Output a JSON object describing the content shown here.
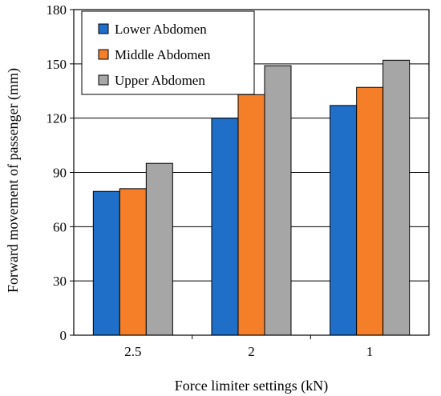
{
  "chart_data": {
    "type": "bar",
    "title": "",
    "xlabel": "Force limiter settings (kN)",
    "ylabel": "Forward movement of passenger  (mm)",
    "categories": [
      "2.5",
      "2",
      "1"
    ],
    "series": [
      {
        "name": "Lower Abdomen",
        "color": "#1f6fc9",
        "values": [
          79.5,
          120,
          127
        ]
      },
      {
        "name": "Middle Abdomen",
        "color": "#f57f29",
        "values": [
          81,
          133,
          137
        ]
      },
      {
        "name": "Upper Abdomen",
        "color": "#a6a6a6",
        "values": [
          95,
          149,
          152
        ]
      }
    ],
    "ylim": [
      0,
      180
    ],
    "yticks": [
      0,
      30,
      60,
      90,
      120,
      150,
      180
    ],
    "ytick_labels": [
      "0",
      "30",
      "60",
      "90",
      "120",
      "150",
      "180"
    ],
    "grid": "horizontal",
    "legend_position": "top-left"
  }
}
